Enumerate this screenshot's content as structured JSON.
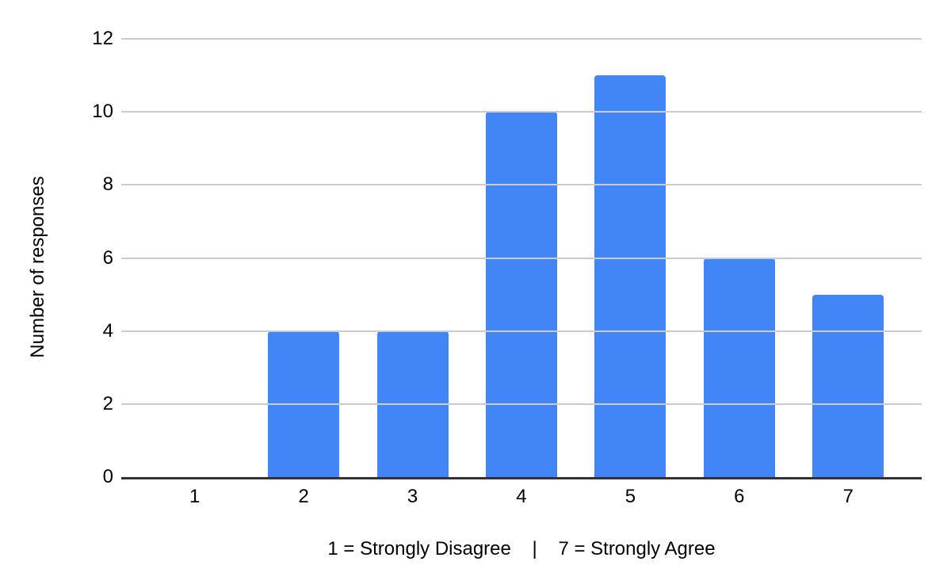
{
  "chart_data": {
    "type": "bar",
    "categories": [
      "1",
      "2",
      "3",
      "4",
      "5",
      "6",
      "7"
    ],
    "values": [
      0,
      4,
      4,
      10,
      11,
      6,
      5
    ],
    "title": "",
    "xlabel": "1 = Strongly Disagree    |    7 = Strongly Agree",
    "ylabel": "Number of responses",
    "ylim": [
      0,
      12
    ],
    "yticks": [
      0,
      2,
      4,
      6,
      8,
      10,
      12
    ],
    "grid": true,
    "legend": "none",
    "colors": {
      "bar": "#4285f4",
      "gridline": "#cccccc",
      "axis": "#333333",
      "label": "#000000",
      "background": "#ffffff"
    }
  }
}
